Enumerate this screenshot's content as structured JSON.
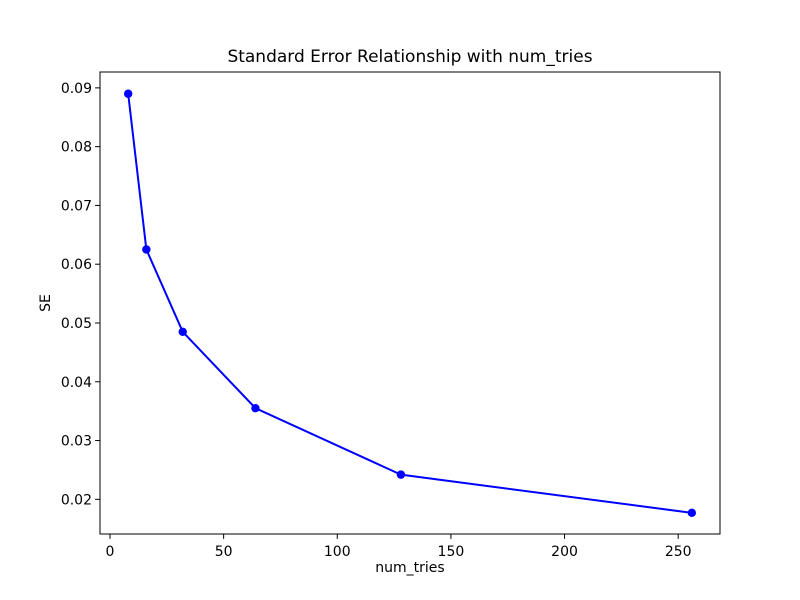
{
  "chart_data": {
    "type": "line",
    "title": "Standard Error Relationship with num_tries",
    "xlabel": "num_tries",
    "ylabel": "SE",
    "series": [
      {
        "name": "SE",
        "x": [
          8,
          16,
          32,
          64,
          128,
          256
        ],
        "y": [
          0.089,
          0.0625,
          0.0485,
          0.0355,
          0.0242,
          0.0177
        ],
        "color": "#0000ff",
        "marker": "circle",
        "line_width": 2,
        "marker_radius": 4.2
      }
    ],
    "xlim": [
      -4.4,
      268.4
    ],
    "ylim": [
      0.0141,
      0.0927
    ],
    "xticks": [
      0,
      50,
      100,
      150,
      200,
      250
    ],
    "xtick_labels": [
      "0",
      "50",
      "100",
      "150",
      "200",
      "250"
    ],
    "yticks": [
      0.02,
      0.03,
      0.04,
      0.05,
      0.06,
      0.07,
      0.08,
      0.09
    ],
    "ytick_labels": [
      "0.02",
      "0.03",
      "0.04",
      "0.05",
      "0.06",
      "0.07",
      "0.08",
      "0.09"
    ],
    "grid": false,
    "legend": "none",
    "spine_color": "#000000",
    "background_color": "#ffffff"
  }
}
